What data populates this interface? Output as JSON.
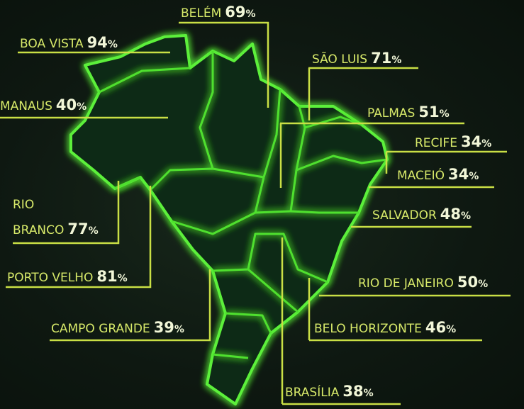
{
  "unit": "%",
  "cities": [
    {
      "name": "BELÉM",
      "value": 69
    },
    {
      "name": "BOA VISTA",
      "value": 94
    },
    {
      "name": "MANAUS",
      "value": 40
    },
    {
      "name": "SÃO LUIS",
      "value": 71
    },
    {
      "name": "PALMAS",
      "value": 51
    },
    {
      "name": "RECIFE",
      "value": 34
    },
    {
      "name": "MACEIÓ",
      "value": 34
    },
    {
      "name": "SALVADOR",
      "value": 48
    },
    {
      "name": "RIO BRANCO",
      "value": 77
    },
    {
      "name": "PORTO VELHO",
      "value": 81
    },
    {
      "name": "RIO DE JANEIRO",
      "value": 50
    },
    {
      "name": "CAMPO GRANDE",
      "value": 39
    },
    {
      "name": "BELO HORIZONTE",
      "value": 46
    },
    {
      "name": "BRASÍLIA",
      "value": 38
    }
  ]
}
